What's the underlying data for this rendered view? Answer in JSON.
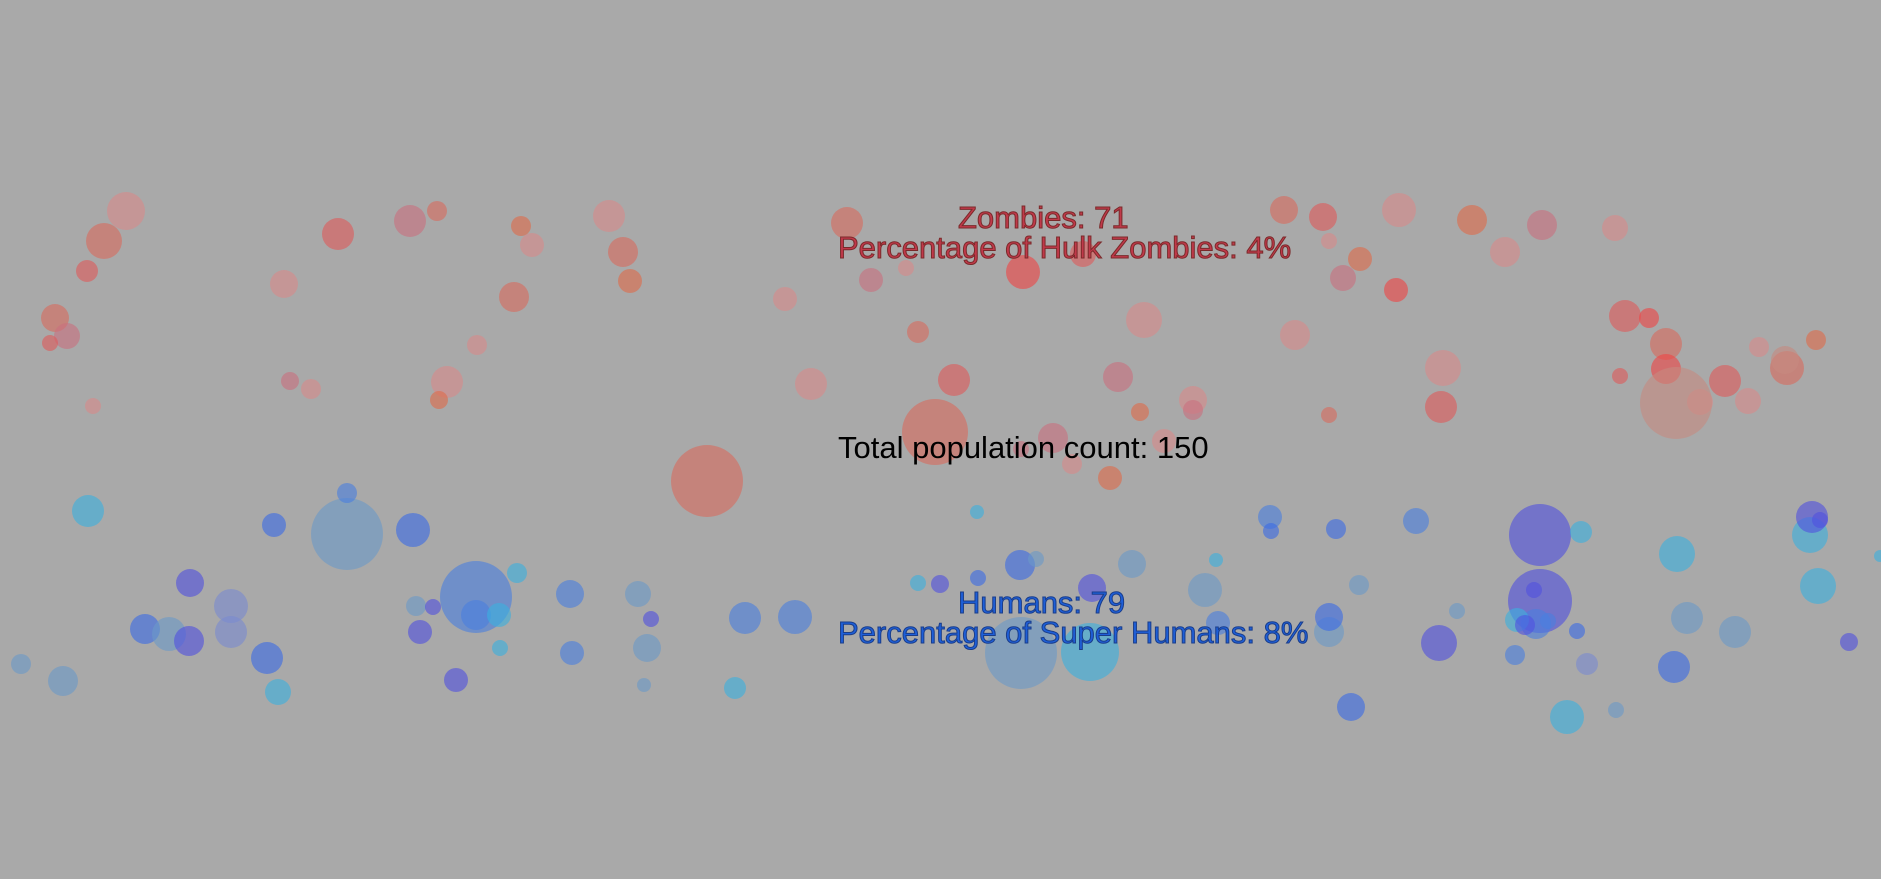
{
  "stats": {
    "zombies_label": "Zombies: 71",
    "hulk_zombies_label": "Percentage of Hulk Zombies: 4%",
    "total_label": "Total population count: 150",
    "humans_label": "Humans: 79",
    "super_humans_label": "Percentage of Super Humans: 8%"
  },
  "counts": {
    "zombies": 71,
    "humans": 79,
    "total": 150,
    "hulk_zombie_percent": 4,
    "super_human_percent": 8
  },
  "colors": {
    "background": "#a9a9a9",
    "zombie_palette": [
      "#e05a5a",
      "#d96b5e",
      "#c9707e",
      "#e06a4a",
      "#d88a8a",
      "#f04545",
      "#c78a80"
    ],
    "human_palette": [
      "#3a6be6",
      "#4a7fe0",
      "#5a8ad0",
      "#3ab0e0",
      "#5050e0",
      "#7a8ad0",
      "#6a9ac8"
    ]
  }
}
